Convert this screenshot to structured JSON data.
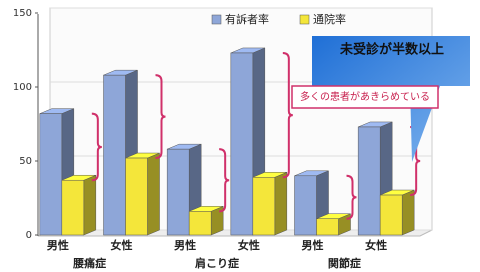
{
  "chart_data": {
    "type": "bar3d",
    "categories": [
      "男性",
      "女性",
      "男性",
      "女性",
      "男性",
      "女性"
    ],
    "groups": [
      "腰痛症",
      "肩こり症",
      "関節症"
    ],
    "series": [
      {
        "name": "有訴者率",
        "color": "#8ea6d8",
        "values": [
          82,
          108,
          58,
          123,
          40,
          73
        ]
      },
      {
        "name": "通院率",
        "color": "#f4e63a",
        "values": [
          37,
          52,
          16,
          39,
          11,
          27
        ]
      }
    ],
    "ylim": [
      0,
      150
    ],
    "yticks": [
      0,
      50,
      100,
      150
    ],
    "grid": true,
    "annotations": [
      "未受診が半数以上",
      "多くの患者があきらめている"
    ]
  }
}
